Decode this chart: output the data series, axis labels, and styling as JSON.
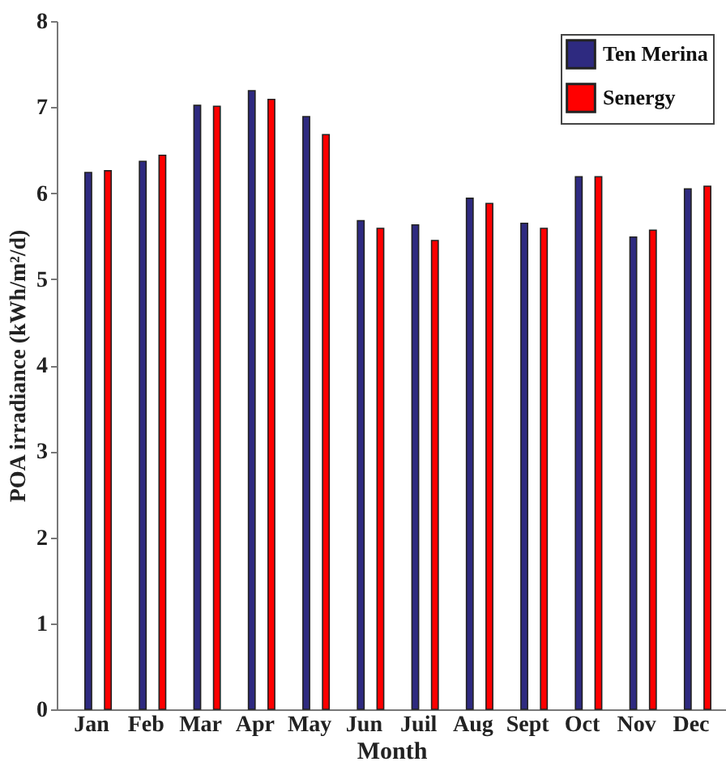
{
  "chart_data": {
    "type": "bar",
    "xlabel": "Month",
    "ylabel": "POA irradiance (kWh/m²/d)",
    "categories": [
      "Jan",
      "Feb",
      "Mar",
      "Apr",
      "May",
      "Jun",
      "Juil",
      "Aug",
      "Sept",
      "Oct",
      "Nov",
      "Dec"
    ],
    "series": [
      {
        "name": "Ten Merina",
        "color": "#2e2a80",
        "values": [
          6.24,
          6.37,
          7.02,
          7.19,
          6.89,
          5.68,
          5.63,
          5.94,
          5.65,
          6.19,
          5.49,
          6.05
        ]
      },
      {
        "name": "Senergy",
        "color": "#ff0000",
        "values": [
          6.26,
          6.44,
          7.01,
          7.09,
          6.68,
          5.59,
          5.45,
          5.88,
          5.59,
          6.19,
          5.57,
          6.08
        ]
      }
    ],
    "ylim": [
      0,
      8
    ],
    "yticks": [
      0,
      1,
      2,
      3,
      4,
      5,
      6,
      7,
      8
    ],
    "grid": false,
    "legend": "top right"
  }
}
